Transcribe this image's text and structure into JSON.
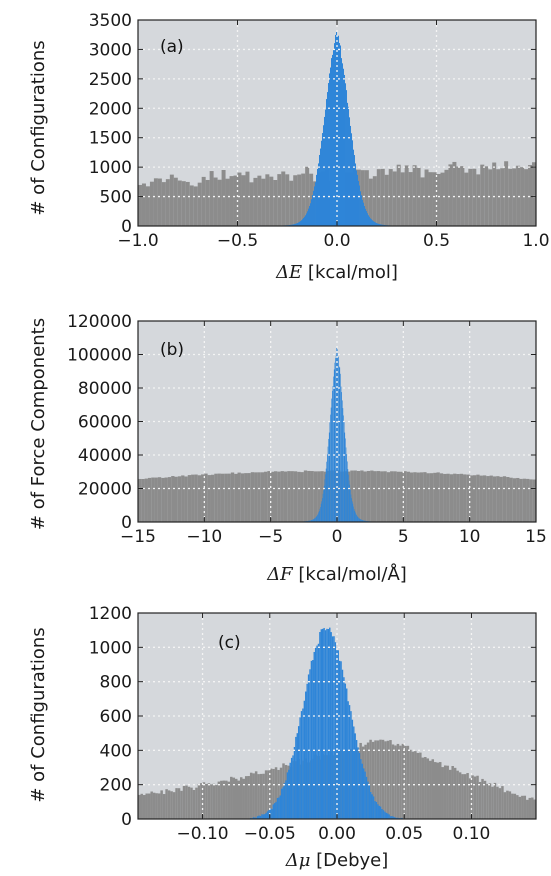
{
  "colors": {
    "plot_bg": "#d5d8dc",
    "grid": "#f4f4f4",
    "gray_bars": "#8c8c8c",
    "blue_bars": "#2e85d8",
    "axis": "#222222"
  },
  "chart_data": [
    {
      "type": "bar",
      "panel_label": "(a)",
      "xlabel_symbol": "ΔE",
      "xlabel_unit": " [kcal/mol]",
      "ylabel": "# of Configurations",
      "xlim": [
        -1.0,
        1.0
      ],
      "ylim": [
        0,
        3500
      ],
      "xticks": [
        -1.0,
        -0.5,
        0.0,
        0.5,
        1.0
      ],
      "xtick_labels": [
        "−1.0",
        "−0.5",
        "0.0",
        "0.5",
        "1.0"
      ],
      "yticks": [
        0,
        500,
        1000,
        1500,
        2000,
        2500,
        3000,
        3500
      ],
      "ytick_labels": [
        "0",
        "500",
        "1000",
        "1500",
        "2000",
        "2500",
        "3000",
        "3500"
      ],
      "grid": true,
      "series": [
        {
          "distribution": "uniform",
          "x_range": [
            -1.0,
            1.0
          ],
          "bins": 100,
          "level": 900,
          "trend": 200,
          "jitter": 160
        },
        {
          "distribution": "peak",
          "center": 0.0,
          "width": 0.065,
          "tail_width": 0.11,
          "height": 3280,
          "bins": 140
        }
      ]
    },
    {
      "type": "bar",
      "panel_label": "(b)",
      "xlabel_symbol": "ΔF",
      "xlabel_unit": " [kcal/mol/Å]",
      "ylabel": "# of Force Components",
      "xlim": [
        -15,
        15
      ],
      "ylim": [
        0,
        120000
      ],
      "xticks": [
        -15,
        -10,
        -5,
        0,
        5,
        10,
        15
      ],
      "xtick_labels": [
        "−15",
        "−10",
        "−5",
        "0",
        "5",
        "10",
        "15"
      ],
      "yticks": [
        0,
        20000,
        40000,
        60000,
        80000,
        100000,
        120000
      ],
      "ytick_labels": [
        "0",
        "20000",
        "40000",
        "60000",
        "80000",
        "100000",
        "120000"
      ],
      "grid": true,
      "series": [
        {
          "distribution": "broad",
          "x_range": [
            -15,
            15
          ],
          "bins": 120,
          "peak": 30500,
          "edge": 25500,
          "jitter": 600
        },
        {
          "distribution": "peak",
          "center": 0.0,
          "width": 0.55,
          "tail_width": 1.1,
          "height": 103000,
          "bins": 150
        }
      ]
    },
    {
      "type": "bar",
      "panel_label": "(c)",
      "xlabel_symbol": "Δμ",
      "xlabel_unit": " [Debye]",
      "ylabel": "# of Configurations",
      "xlim": [
        -0.148,
        0.148
      ],
      "ylim": [
        0,
        1200
      ],
      "xticks": [
        -0.1,
        -0.05,
        0.0,
        0.05,
        0.1
      ],
      "xtick_labels": [
        "−0.10",
        "−0.05",
        "0.00",
        "0.05",
        "0.10"
      ],
      "yticks": [
        0,
        200,
        400,
        600,
        800,
        1000,
        1200
      ],
      "ytick_labels": [
        "0",
        "200",
        "400",
        "600",
        "800",
        "1000",
        "1200"
      ],
      "grid": true,
      "series": [
        {
          "distribution": "skewed",
          "x_range": [
            -0.148,
            0.148
          ],
          "bins": 160,
          "start": 140,
          "mode_x": 0.035,
          "mode": 470,
          "end": 110,
          "jitter": 22
        },
        {
          "distribution": "gaussian",
          "center": -0.008,
          "width": 0.017,
          "height": 1110,
          "bins": 110,
          "jitter": 35
        }
      ]
    }
  ]
}
